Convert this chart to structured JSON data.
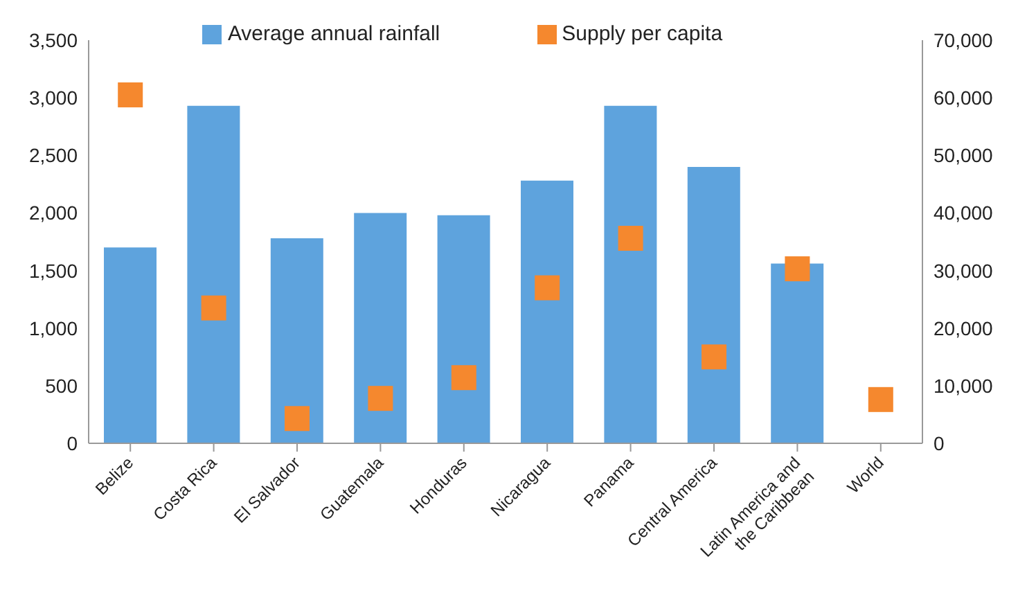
{
  "chart_data": {
    "type": "bar",
    "categories": [
      "Belize",
      "Costa Rica",
      "El Salvador",
      "Guatemala",
      "Honduras",
      "Nicaragua",
      "Panama",
      "Central America",
      "Latin America and the Caribbean",
      "World"
    ],
    "series": [
      {
        "name": "Average annual rainfall",
        "color": "#5ea3dd",
        "values": [
          1700,
          2930,
          1780,
          2000,
          1980,
          2280,
          2930,
          2400,
          1560,
          null
        ]
      },
      {
        "name": "Supply per capita",
        "type": "scatter",
        "axis": "y2",
        "color": "#f5882e",
        "values": [
          60500,
          23500,
          4300,
          7800,
          11400,
          27000,
          35600,
          15000,
          30300,
          7600
        ]
      }
    ],
    "ylim": [
      0,
      3500
    ],
    "yticks": [
      0,
      500,
      {
        "value": 1000,
        "label": "1,000"
      },
      {
        "value": 1500,
        "label": "1,500"
      },
      {
        "value": 2000,
        "label": "2,000"
      },
      {
        "value": 2500,
        "label": "2,500"
      },
      {
        "value": 3000,
        "label": "3,000"
      },
      {
        "value": 3500,
        "label": "3,500"
      }
    ],
    "y2lim": [
      0,
      70000
    ],
    "y2ticks": [
      0,
      {
        "value": 10000,
        "label": "10,000"
      },
      {
        "value": 20000,
        "label": "20,000"
      },
      {
        "value": 30000,
        "label": "30,000"
      },
      {
        "value": 40000,
        "label": "40,000"
      },
      {
        "value": 50000,
        "label": "50,000"
      },
      {
        "value": 60000,
        "label": "60,000"
      },
      {
        "value": 70000,
        "label": "70,000"
      }
    ],
    "grid": false,
    "legend": "top",
    "marker": "square"
  }
}
